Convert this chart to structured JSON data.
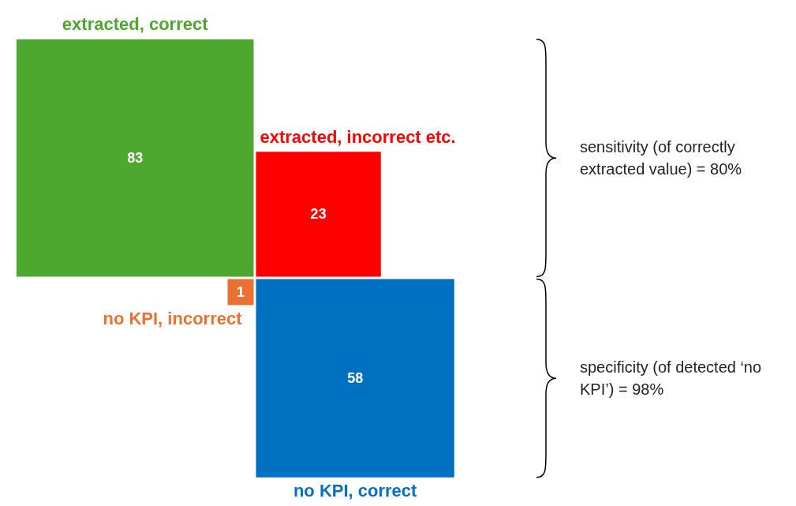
{
  "chart_data": {
    "type": "other",
    "categories": [
      "extracted, correct",
      "extracted, incorrect etc.",
      "no KPI, incorrect",
      "no KPI, correct"
    ],
    "values": [
      83,
      23,
      1,
      58
    ],
    "colors": [
      "#4ea72e",
      "#ff0000",
      "#e97132",
      "#0070c0"
    ],
    "data_labels": true,
    "annotations": [
      "sensitivity (of correctly extracted value) = 80%",
      "specificity (of detected ‘no KPI’) = 98%"
    ]
  }
}
